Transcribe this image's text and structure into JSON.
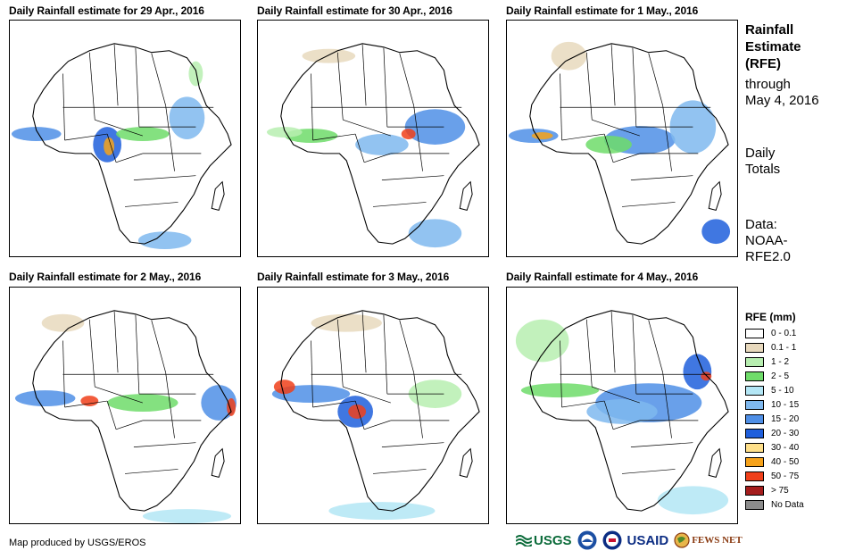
{
  "panels": [
    {
      "title": "Daily Rainfall estimate for 29 Apr., 2016"
    },
    {
      "title": "Daily Rainfall estimate for 30 Apr., 2016"
    },
    {
      "title": "Daily Rainfall estimate for 1 May., 2016"
    },
    {
      "title": "Daily Rainfall estimate for 2 May., 2016"
    },
    {
      "title": "Daily Rainfall estimate for 3 May., 2016"
    },
    {
      "title": "Daily Rainfall estimate for 4 May., 2016"
    }
  ],
  "side": {
    "title_line1": "Rainfall",
    "title_line2": "Estimate",
    "title_line3": "(RFE)",
    "through_label": "through",
    "through_date": "May 4, 2016",
    "totals_line1": "Daily",
    "totals_line2": "Totals",
    "data_line1": "Data:",
    "data_line2": "NOAA-",
    "data_line3": "RFE2.0"
  },
  "legend": {
    "title": "RFE (mm)",
    "items": [
      {
        "label": "0 - 0.1",
        "color": "#ffffff"
      },
      {
        "label": "0.1 - 1",
        "color": "#e8d9bd"
      },
      {
        "label": "1 - 2",
        "color": "#b7eeb0"
      },
      {
        "label": "2 - 5",
        "color": "#6fdc6a"
      },
      {
        "label": "5 - 10",
        "color": "#b3e6f5"
      },
      {
        "label": "10 - 15",
        "color": "#7fb8ee"
      },
      {
        "label": "15 - 20",
        "color": "#4f8fe6"
      },
      {
        "label": "20 - 30",
        "color": "#1f5fdc"
      },
      {
        "label": "30 - 40",
        "color": "#ffe08a"
      },
      {
        "label": "40 - 50",
        "color": "#f6a21a"
      },
      {
        "label": "50 - 75",
        "color": "#f0401a"
      },
      {
        "label": "> 75",
        "color": "#a51d1d"
      },
      {
        "label": "No Data",
        "color": "#8c8c8c"
      }
    ]
  },
  "credit": "Map produced by USGS/EROS",
  "logos": {
    "usgs": "USGS",
    "usaid": "USAID",
    "fews": "FEWS NET"
  }
}
